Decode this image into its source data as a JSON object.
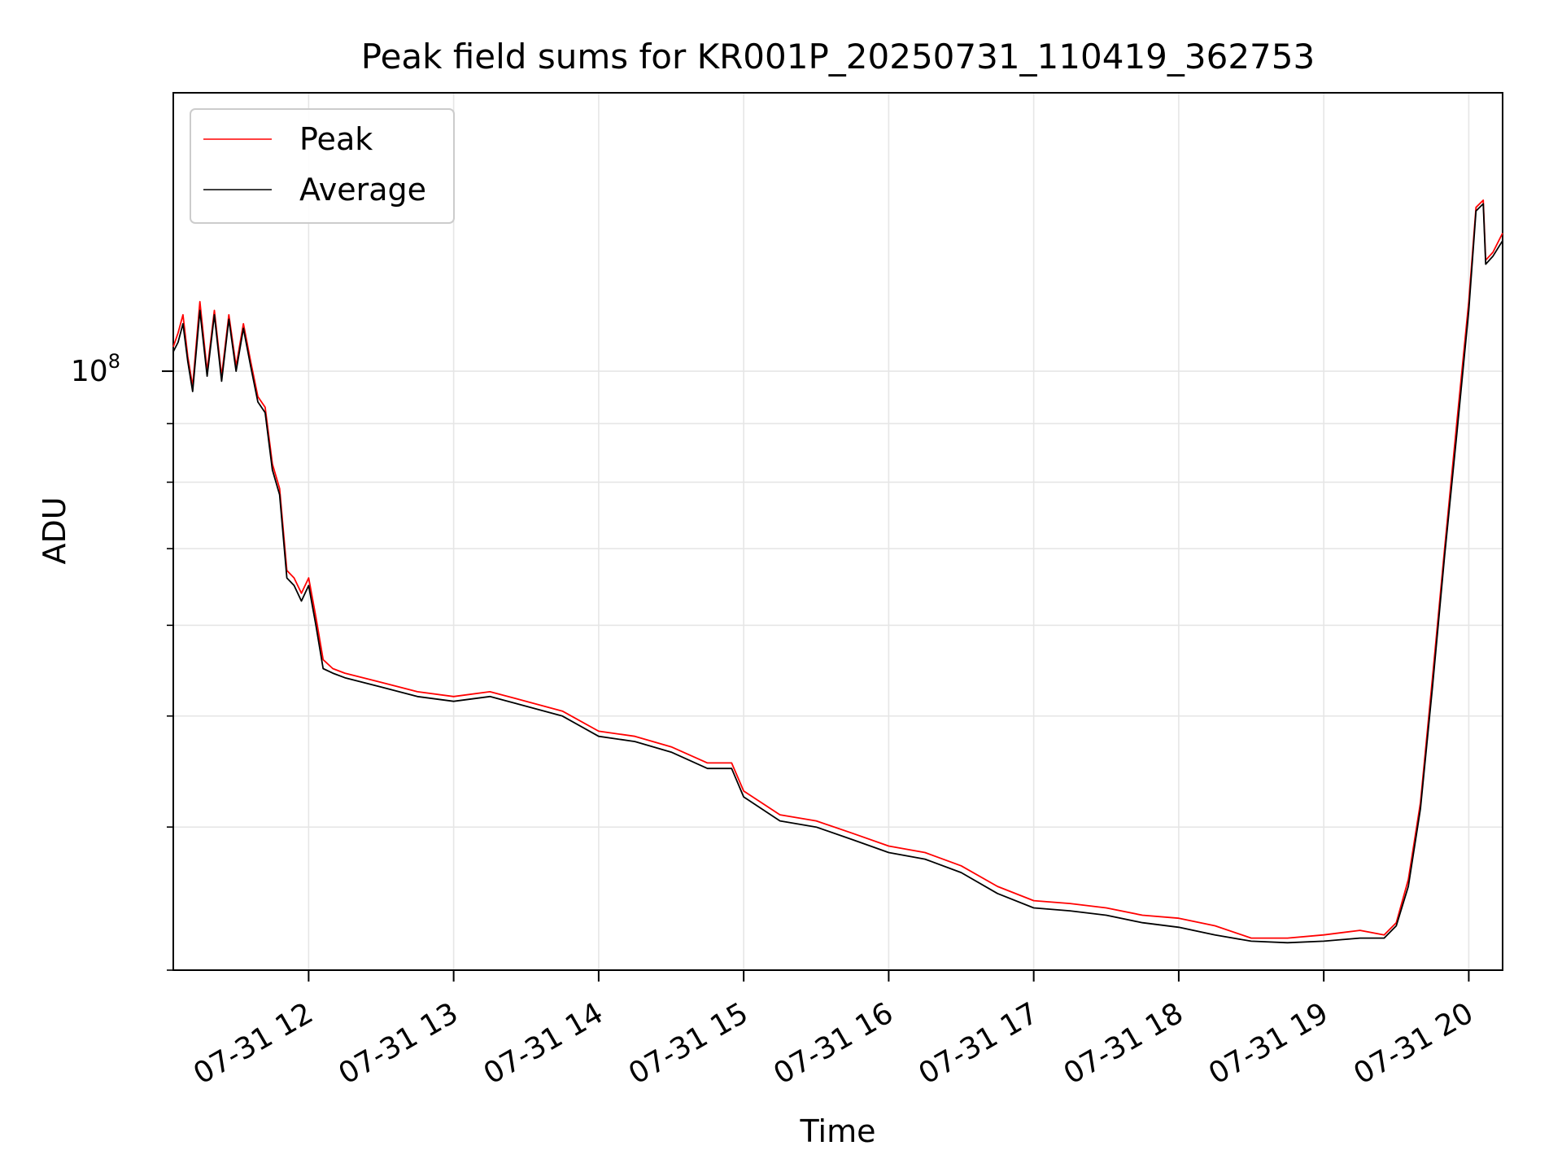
{
  "chart_data": {
    "type": "line",
    "title": "Peak field sums for KR001P_20250731_110419_362753",
    "xlabel": "Time",
    "ylabel": "ADU",
    "y_scale": "log",
    "ylim": [
      30000000.0,
      175000000.0
    ],
    "xlim": [
      "2025-07-31 11:04",
      "2025-07-31 20:14"
    ],
    "grid": true,
    "legend_position": "top-left",
    "x_ticks": [
      "07-31 12",
      "07-31 13",
      "07-31 14",
      "07-31 15",
      "07-31 16",
      "07-31 17",
      "07-31 18",
      "07-31 19",
      "07-31 20"
    ],
    "y_tick_label": "10",
    "y_tick_exponent": "8",
    "y_tick_value": 100000000.0,
    "series": [
      {
        "name": "Peak",
        "color": "#ff0000",
        "x": [
          "2025-07-31 11:04",
          "2025-07-31 11:06",
          "2025-07-31 11:08",
          "2025-07-31 11:10",
          "2025-07-31 11:12",
          "2025-07-31 11:15",
          "2025-07-31 11:18",
          "2025-07-31 11:21",
          "2025-07-31 11:24",
          "2025-07-31 11:27",
          "2025-07-31 11:30",
          "2025-07-31 11:33",
          "2025-07-31 11:36",
          "2025-07-31 11:39",
          "2025-07-31 11:42",
          "2025-07-31 11:45",
          "2025-07-31 11:48",
          "2025-07-31 11:51",
          "2025-07-31 11:54",
          "2025-07-31 11:57",
          "2025-07-31 12:00",
          "2025-07-31 12:03",
          "2025-07-31 12:06",
          "2025-07-31 12:10",
          "2025-07-31 12:15",
          "2025-07-31 12:30",
          "2025-07-31 12:45",
          "2025-07-31 13:00",
          "2025-07-31 13:15",
          "2025-07-31 13:30",
          "2025-07-31 13:45",
          "2025-07-31 14:00",
          "2025-07-31 14:15",
          "2025-07-31 14:30",
          "2025-07-31 14:45",
          "2025-07-31 14:55",
          "2025-07-31 15:00",
          "2025-07-31 15:15",
          "2025-07-31 15:30",
          "2025-07-31 15:45",
          "2025-07-31 16:00",
          "2025-07-31 16:15",
          "2025-07-31 16:30",
          "2025-07-31 16:45",
          "2025-07-31 17:00",
          "2025-07-31 17:15",
          "2025-07-31 17:30",
          "2025-07-31 17:45",
          "2025-07-31 18:00",
          "2025-07-31 18:15",
          "2025-07-31 18:30",
          "2025-07-31 18:45",
          "2025-07-31 19:00",
          "2025-07-31 19:15",
          "2025-07-31 19:25",
          "2025-07-31 19:30",
          "2025-07-31 19:35",
          "2025-07-31 19:40",
          "2025-07-31 19:45",
          "2025-07-31 19:50",
          "2025-07-31 19:55",
          "2025-07-31 20:00",
          "2025-07-31 20:03",
          "2025-07-31 20:06",
          "2025-07-31 20:07",
          "2025-07-31 20:10",
          "2025-07-31 20:14"
        ],
        "values": [
          105000000.0,
          108000000.0,
          112000000.0,
          103000000.0,
          97000000.0,
          115000000.0,
          100000000.0,
          113000000.0,
          99000000.0,
          112000000.0,
          101000000.0,
          110000000.0,
          102000000.0,
          95000000.0,
          93000000.0,
          83000000.0,
          79000000.0,
          67000000.0,
          66000000.0,
          64000000.0,
          66000000.0,
          61000000.0,
          56000000.0,
          55000000.0,
          54500000.0,
          53500000.0,
          52500000.0,
          52000000.0,
          52500000.0,
          51500000.0,
          50500000.0,
          48500000.0,
          48000000.0,
          47000000.0,
          45500000.0,
          45500000.0,
          43000000.0,
          41000000.0,
          40500000.0,
          39500000.0,
          38500000.0,
          38000000.0,
          37000000.0,
          35500000.0,
          34500000.0,
          34300000.0,
          34000000.0,
          33500000.0,
          33300000.0,
          32800000.0,
          32000000.0,
          32000000.0,
          32200000.0,
          32500000.0,
          32200000.0,
          33000000.0,
          36000000.0,
          42000000.0,
          54000000.0,
          70000000.0,
          90000000.0,
          115000000.0,
          139000000.0,
          141000000.0,
          125000000.0,
          127000000.0,
          132000000.0
        ]
      },
      {
        "name": "Average",
        "color": "#000000",
        "x": [
          "2025-07-31 11:04",
          "2025-07-31 11:06",
          "2025-07-31 11:08",
          "2025-07-31 11:10",
          "2025-07-31 11:12",
          "2025-07-31 11:15",
          "2025-07-31 11:18",
          "2025-07-31 11:21",
          "2025-07-31 11:24",
          "2025-07-31 11:27",
          "2025-07-31 11:30",
          "2025-07-31 11:33",
          "2025-07-31 11:36",
          "2025-07-31 11:39",
          "2025-07-31 11:42",
          "2025-07-31 11:45",
          "2025-07-31 11:48",
          "2025-07-31 11:51",
          "2025-07-31 11:54",
          "2025-07-31 11:57",
          "2025-07-31 12:00",
          "2025-07-31 12:03",
          "2025-07-31 12:06",
          "2025-07-31 12:10",
          "2025-07-31 12:15",
          "2025-07-31 12:30",
          "2025-07-31 12:45",
          "2025-07-31 13:00",
          "2025-07-31 13:15",
          "2025-07-31 13:30",
          "2025-07-31 13:45",
          "2025-07-31 14:00",
          "2025-07-31 14:15",
          "2025-07-31 14:30",
          "2025-07-31 14:45",
          "2025-07-31 14:55",
          "2025-07-31 15:00",
          "2025-07-31 15:15",
          "2025-07-31 15:30",
          "2025-07-31 15:45",
          "2025-07-31 16:00",
          "2025-07-31 16:15",
          "2025-07-31 16:30",
          "2025-07-31 16:45",
          "2025-07-31 17:00",
          "2025-07-31 17:15",
          "2025-07-31 17:30",
          "2025-07-31 17:45",
          "2025-07-31 18:00",
          "2025-07-31 18:15",
          "2025-07-31 18:30",
          "2025-07-31 18:45",
          "2025-07-31 19:00",
          "2025-07-31 19:15",
          "2025-07-31 19:25",
          "2025-07-31 19:30",
          "2025-07-31 19:35",
          "2025-07-31 19:40",
          "2025-07-31 19:45",
          "2025-07-31 19:50",
          "2025-07-31 19:55",
          "2025-07-31 20:00",
          "2025-07-31 20:03",
          "2025-07-31 20:06",
          "2025-07-31 20:07",
          "2025-07-31 20:10",
          "2025-07-31 20:14"
        ],
        "values": [
          104000000.0,
          106000000.0,
          110000000.0,
          102000000.0,
          96000000.0,
          113000000.0,
          99000000.0,
          112000000.0,
          98000000.0,
          111000000.0,
          100000000.0,
          109000000.0,
          101000000.0,
          94000000.0,
          92000000.0,
          82000000.0,
          78000000.0,
          66000000.0,
          65000000.0,
          63000000.0,
          65000000.0,
          60000000.0,
          55000000.0,
          54500000.0,
          54000000.0,
          53000000.0,
          52000000.0,
          51500000.0,
          52000000.0,
          51000000.0,
          50000000.0,
          48000000.0,
          47500000.0,
          46500000.0,
          45000000.0,
          45000000.0,
          42500000.0,
          40500000.0,
          40000000.0,
          39000000.0,
          38000000.0,
          37500000.0,
          36500000.0,
          35000000.0,
          34000000.0,
          33800000.0,
          33500000.0,
          33000000.0,
          32700000.0,
          32200000.0,
          31800000.0,
          31700000.0,
          31800000.0,
          32000000.0,
          32000000.0,
          32800000.0,
          35500000.0,
          41500000.0,
          53000000.0,
          69000000.0,
          88000000.0,
          113000000.0,
          138000000.0,
          140000000.0,
          124000000.0,
          126000000.0,
          130000000.0
        ]
      }
    ]
  }
}
